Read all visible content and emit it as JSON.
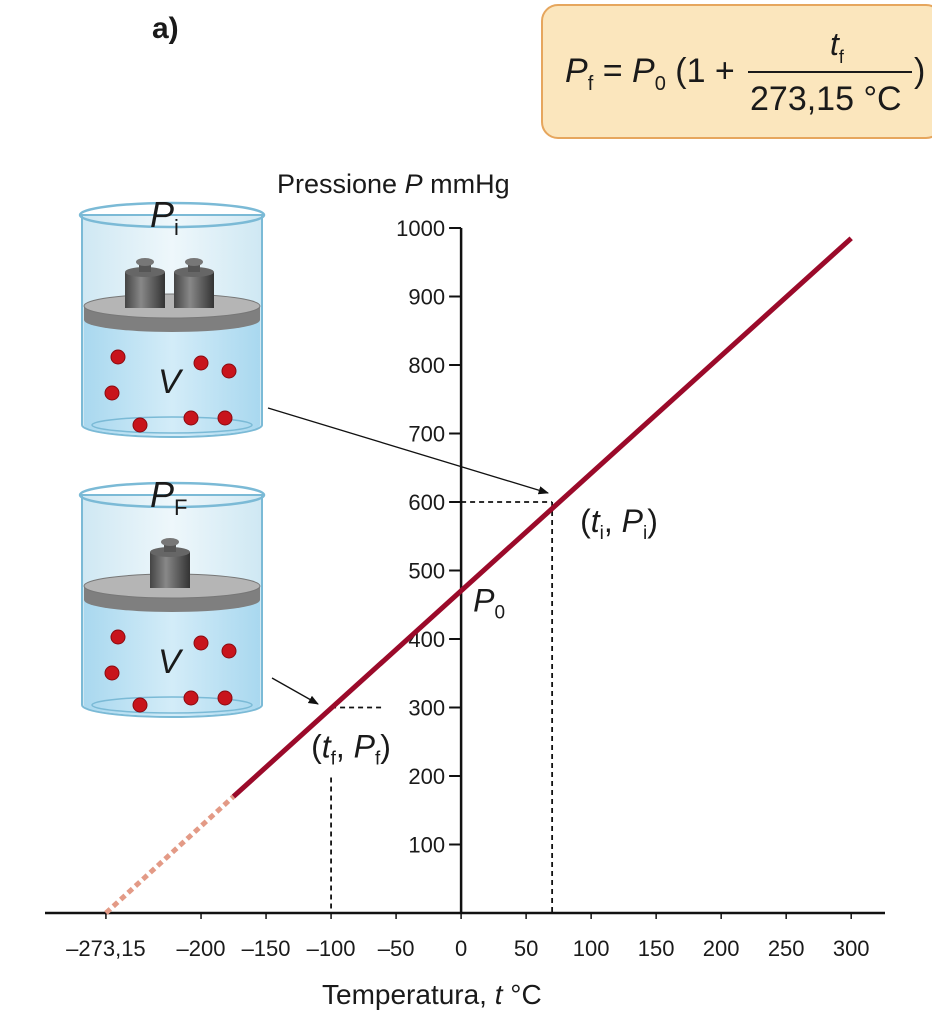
{
  "panel_label": "a)",
  "formula": {
    "lhs": "P",
    "lhs_sub": "f",
    "eq": " = ",
    "rhs": "P",
    "rhs_sub": "0",
    "open": " (1 + ",
    "num": "t",
    "num_sub": "f",
    "den": "273,15 °C",
    "close": ")"
  },
  "illustration": [
    {
      "pressure": "P",
      "pressure_sub": "i",
      "volume": "V"
    },
    {
      "pressure": "P",
      "pressure_sub": "F",
      "volume": "V"
    }
  ],
  "chart_data": {
    "type": "line",
    "y_label": {
      "before": "Pressione ",
      "symbol": "P",
      "after": " mmHg"
    },
    "x_label": {
      "before": "Temperatura, ",
      "symbol": "t",
      "after": " °C"
    },
    "xlim": [
      -320,
      326
    ],
    "ylim": [
      0,
      1000
    ],
    "xticks": [
      {
        "value": -273.15,
        "label": "–273,15"
      },
      {
        "value": -200,
        "label": "–200"
      },
      {
        "value": -150,
        "label": "–150"
      },
      {
        "value": -100,
        "label": "–100"
      },
      {
        "value": -50,
        "label": "–50"
      },
      0,
      50,
      100,
      150,
      200,
      250,
      300
    ],
    "yticks": [
      100,
      200,
      300,
      400,
      500,
      600,
      700,
      800,
      900,
      1000
    ],
    "series": [
      {
        "color": "#e39a86",
        "dashed": true,
        "x": [
          -273.15,
          -175
        ],
        "values": [
          0,
          170
        ]
      },
      {
        "color": "#9b0a2a",
        "dashed": false,
        "x": [
          -175,
          300
        ],
        "values": [
          170,
          985
        ]
      }
    ],
    "points": [
      {
        "x": 70,
        "y": 600,
        "label": {
          "open": "(",
          "t": "t",
          "t_sub": "i",
          "sep": ", ",
          "p": "P",
          "p_sub": "i",
          "close": ")"
        }
      },
      {
        "x": -100,
        "y": 300,
        "label": {
          "open": "(",
          "t": "t",
          "t_sub": "f",
          "sep": ", ",
          "p": "P",
          "p_sub": "f",
          "close": ")"
        }
      }
    ],
    "intercept_label": {
      "symbol": "P",
      "sub": "0"
    }
  }
}
